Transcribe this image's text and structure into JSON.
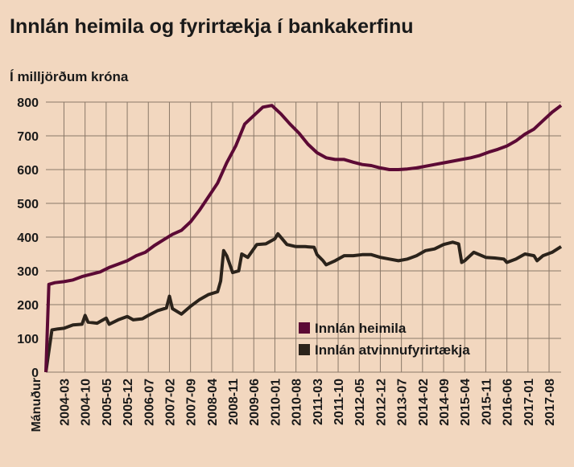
{
  "chart_data": {
    "type": "line",
    "title": "Innlán heimila og fyrirtækja í bankakerfinu",
    "ylabel": "Í milljörðum króna",
    "xlabel": "Mánuður",
    "ylim": [
      0,
      800
    ],
    "yticks": [
      "0",
      "100",
      "200",
      "300",
      "400",
      "500",
      "600",
      "700",
      "800"
    ],
    "xlim": [
      "2003-09",
      "2017-12"
    ],
    "xticks": [
      "2004-03",
      "2004-10",
      "2005-05",
      "2005-12",
      "2006-07",
      "2007-02",
      "2007-09",
      "2008-04",
      "2008-11",
      "2009-06",
      "2010-01",
      "2010-08",
      "2011-03",
      "2011-10",
      "2012-05",
      "2012-12",
      "2013-07",
      "2014-02",
      "2014-09",
      "2015-04",
      "2015-11",
      "2016-06",
      "2017-01",
      "2017-08"
    ],
    "grid": true,
    "legend": "center-right",
    "series": [
      {
        "name": "Innlán heimila",
        "color": "#5c0a35",
        "points": [
          [
            "2003-09",
            0
          ],
          [
            "2003-10",
            260
          ],
          [
            "2003-12",
            265
          ],
          [
            "2004-03",
            268
          ],
          [
            "2004-06",
            273
          ],
          [
            "2004-09",
            283
          ],
          [
            "2004-12",
            290
          ],
          [
            "2005-03",
            297
          ],
          [
            "2005-06",
            310
          ],
          [
            "2005-09",
            320
          ],
          [
            "2005-12",
            330
          ],
          [
            "2006-03",
            345
          ],
          [
            "2006-06",
            355
          ],
          [
            "2006-09",
            375
          ],
          [
            "2006-12",
            392
          ],
          [
            "2007-03",
            408
          ],
          [
            "2007-06",
            420
          ],
          [
            "2007-09",
            445
          ],
          [
            "2007-12",
            480
          ],
          [
            "2008-03",
            520
          ],
          [
            "2008-06",
            560
          ],
          [
            "2008-09",
            620
          ],
          [
            "2008-12",
            670
          ],
          [
            "2009-03",
            735
          ],
          [
            "2009-06",
            760
          ],
          [
            "2009-09",
            785
          ],
          [
            "2009-12",
            790
          ],
          [
            "2010-03",
            765
          ],
          [
            "2010-06",
            735
          ],
          [
            "2010-09",
            708
          ],
          [
            "2010-12",
            675
          ],
          [
            "2011-03",
            650
          ],
          [
            "2011-06",
            635
          ],
          [
            "2011-09",
            630
          ],
          [
            "2011-12",
            630
          ],
          [
            "2012-03",
            622
          ],
          [
            "2012-06",
            615
          ],
          [
            "2012-09",
            612
          ],
          [
            "2012-12",
            605
          ],
          [
            "2013-03",
            600
          ],
          [
            "2013-06",
            600
          ],
          [
            "2013-09",
            602
          ],
          [
            "2013-12",
            605
          ],
          [
            "2014-03",
            610
          ],
          [
            "2014-06",
            615
          ],
          [
            "2014-09",
            620
          ],
          [
            "2014-12",
            625
          ],
          [
            "2015-03",
            630
          ],
          [
            "2015-06",
            635
          ],
          [
            "2015-09",
            642
          ],
          [
            "2015-12",
            652
          ],
          [
            "2016-03",
            660
          ],
          [
            "2016-06",
            670
          ],
          [
            "2016-09",
            685
          ],
          [
            "2016-12",
            705
          ],
          [
            "2017-03",
            720
          ],
          [
            "2017-06",
            745
          ],
          [
            "2017-09",
            770
          ],
          [
            "2017-12",
            790
          ]
        ]
      },
      {
        "name": "Innlán atvinnufyrirtækja",
        "color": "#2b231b",
        "points": [
          [
            "2003-09",
            0
          ],
          [
            "2003-11",
            125
          ],
          [
            "2004-01",
            128
          ],
          [
            "2004-03",
            130
          ],
          [
            "2004-06",
            140
          ],
          [
            "2004-09",
            142
          ],
          [
            "2004-10",
            168
          ],
          [
            "2004-11",
            148
          ],
          [
            "2005-02",
            145
          ],
          [
            "2005-05",
            160
          ],
          [
            "2005-06",
            142
          ],
          [
            "2005-09",
            155
          ],
          [
            "2005-12",
            165
          ],
          [
            "2006-02",
            155
          ],
          [
            "2006-05",
            158
          ],
          [
            "2006-07",
            168
          ],
          [
            "2006-10",
            182
          ],
          [
            "2007-01",
            190
          ],
          [
            "2007-02",
            225
          ],
          [
            "2007-03",
            188
          ],
          [
            "2007-06",
            172
          ],
          [
            "2007-09",
            195
          ],
          [
            "2007-12",
            215
          ],
          [
            "2008-03",
            230
          ],
          [
            "2008-06",
            238
          ],
          [
            "2008-07",
            270
          ],
          [
            "2008-08",
            360
          ],
          [
            "2008-09",
            345
          ],
          [
            "2008-11",
            295
          ],
          [
            "2009-01",
            300
          ],
          [
            "2009-02",
            350
          ],
          [
            "2009-04",
            340
          ],
          [
            "2009-07",
            378
          ],
          [
            "2009-10",
            380
          ],
          [
            "2010-01",
            395
          ],
          [
            "2010-02",
            410
          ],
          [
            "2010-05",
            378
          ],
          [
            "2010-08",
            372
          ],
          [
            "2010-11",
            372
          ],
          [
            "2011-02",
            370
          ],
          [
            "2011-03",
            348
          ],
          [
            "2011-05",
            330
          ],
          [
            "2011-06",
            318
          ],
          [
            "2011-09",
            330
          ],
          [
            "2011-12",
            345
          ],
          [
            "2012-03",
            345
          ],
          [
            "2012-06",
            348
          ],
          [
            "2012-09",
            348
          ],
          [
            "2012-12",
            340
          ],
          [
            "2013-03",
            335
          ],
          [
            "2013-06",
            330
          ],
          [
            "2013-09",
            335
          ],
          [
            "2013-12",
            345
          ],
          [
            "2014-03",
            360
          ],
          [
            "2014-06",
            365
          ],
          [
            "2014-09",
            378
          ],
          [
            "2014-12",
            385
          ],
          [
            "2015-02",
            380
          ],
          [
            "2015-03",
            325
          ],
          [
            "2015-04",
            330
          ],
          [
            "2015-07",
            355
          ],
          [
            "2015-11",
            340
          ],
          [
            "2016-02",
            338
          ],
          [
            "2016-05",
            335
          ],
          [
            "2016-06",
            325
          ],
          [
            "2016-09",
            335
          ],
          [
            "2016-12",
            350
          ],
          [
            "2017-03",
            345
          ],
          [
            "2017-04",
            330
          ],
          [
            "2017-06",
            345
          ],
          [
            "2017-09",
            355
          ],
          [
            "2017-12",
            372
          ]
        ]
      }
    ]
  }
}
